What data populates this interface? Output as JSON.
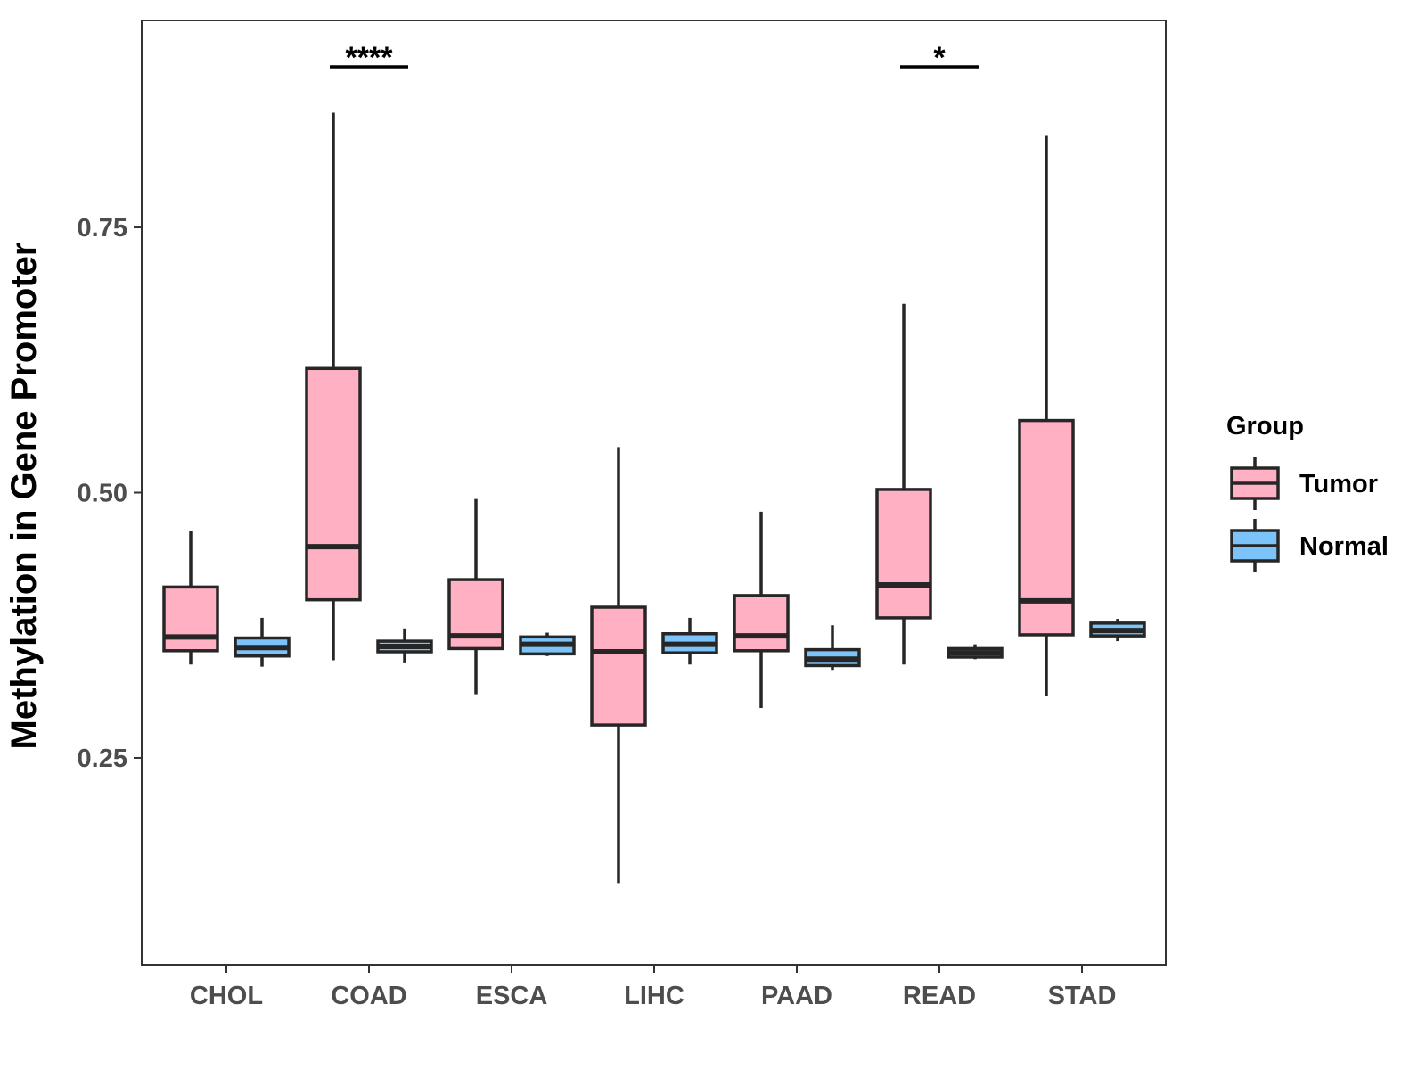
{
  "chart_data": {
    "type": "boxplot",
    "title": "",
    "xlabel": "",
    "ylabel": "Methylation in Gene Promoter",
    "ylim": [
      0.055,
      0.945
    ],
    "yticks": [
      0.25,
      0.5,
      0.75
    ],
    "ytick_labels": [
      "0.25",
      "0.50",
      "0.75"
    ],
    "categories": [
      "CHOL",
      "COAD",
      "ESCA",
      "LIHC",
      "PAAD",
      "READ",
      "STAD"
    ],
    "legend": {
      "title": "Group",
      "position": "right",
      "entries": [
        "Tumor",
        "Normal"
      ]
    },
    "series": [
      {
        "name": "Tumor",
        "color": "#FFB0C2",
        "boxes": [
          {
            "category": "CHOL",
            "whisker_low": 0.338,
            "q1": 0.351,
            "median": 0.364,
            "q3": 0.411,
            "whisker_high": 0.464
          },
          {
            "category": "COAD",
            "whisker_low": 0.342,
            "q1": 0.399,
            "median": 0.449,
            "q3": 0.617,
            "whisker_high": 0.858
          },
          {
            "category": "ESCA",
            "whisker_low": 0.31,
            "q1": 0.353,
            "median": 0.365,
            "q3": 0.418,
            "whisker_high": 0.494
          },
          {
            "category": "LIHC",
            "whisker_low": 0.132,
            "q1": 0.281,
            "median": 0.35,
            "q3": 0.392,
            "whisker_high": 0.543
          },
          {
            "category": "PAAD",
            "whisker_low": 0.297,
            "q1": 0.351,
            "median": 0.365,
            "q3": 0.403,
            "whisker_high": 0.482
          },
          {
            "category": "READ",
            "whisker_low": 0.338,
            "q1": 0.382,
            "median": 0.413,
            "q3": 0.503,
            "whisker_high": 0.678
          },
          {
            "category": "STAD",
            "whisker_low": 0.308,
            "q1": 0.366,
            "median": 0.398,
            "q3": 0.568,
            "whisker_high": 0.837
          }
        ]
      },
      {
        "name": "Normal",
        "color": "#7CC3F9",
        "boxes": [
          {
            "category": "CHOL",
            "whisker_low": 0.336,
            "q1": 0.346,
            "median": 0.354,
            "q3": 0.363,
            "whisker_high": 0.382
          },
          {
            "category": "COAD",
            "whisker_low": 0.34,
            "q1": 0.35,
            "median": 0.355,
            "q3": 0.36,
            "whisker_high": 0.372
          },
          {
            "category": "ESCA",
            "whisker_low": 0.346,
            "q1": 0.348,
            "median": 0.357,
            "q3": 0.364,
            "whisker_high": 0.368
          },
          {
            "category": "LIHC",
            "whisker_low": 0.338,
            "q1": 0.349,
            "median": 0.357,
            "q3": 0.367,
            "whisker_high": 0.382
          },
          {
            "category": "PAAD",
            "whisker_low": 0.333,
            "q1": 0.337,
            "median": 0.343,
            "q3": 0.352,
            "whisker_high": 0.375
          },
          {
            "category": "READ",
            "whisker_low": 0.343,
            "q1": 0.345,
            "median": 0.349,
            "q3": 0.353,
            "whisker_high": 0.357
          },
          {
            "category": "STAD",
            "whisker_low": 0.36,
            "q1": 0.365,
            "median": 0.37,
            "q3": 0.377,
            "whisker_high": 0.381
          }
        ]
      }
    ],
    "annotations": [
      {
        "category": "COAD",
        "label": "****"
      },
      {
        "category": "READ",
        "label": "*"
      }
    ]
  }
}
